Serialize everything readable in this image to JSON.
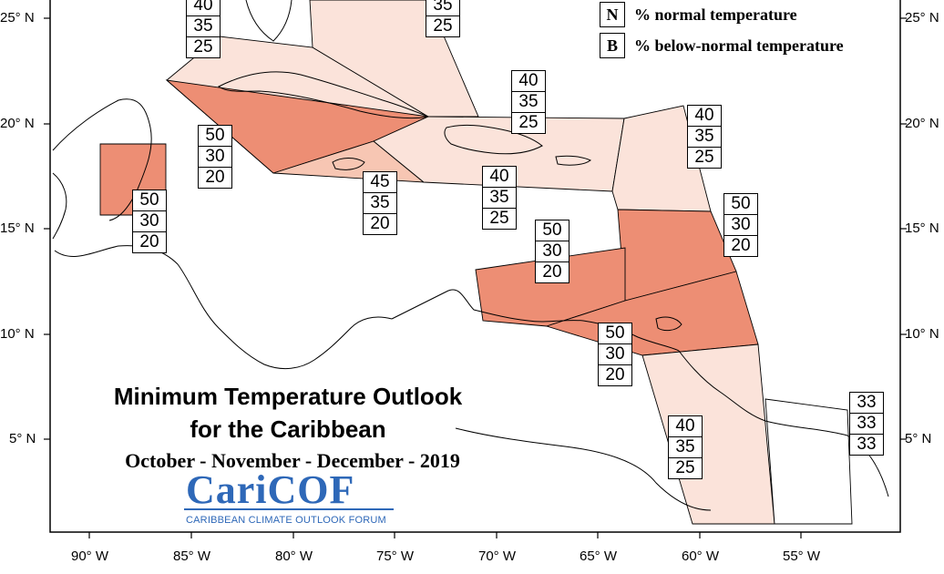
{
  "title_line1": "Minimum Temperature Outlook",
  "title_line2": "for the Caribbean",
  "subtitle": "October - November - December - 2019",
  "logo": {
    "name": "CariCOF",
    "tagline": "CARIBBEAN CLIMATE OUTLOOK FORUM"
  },
  "legend": [
    {
      "key": "N",
      "label": "% normal temperature"
    },
    {
      "key": "B",
      "label": "% below-normal temperature"
    }
  ],
  "lat_labels": [
    "25° N",
    "20° N",
    "15° N",
    "10° N",
    "5° N"
  ],
  "lon_labels": [
    "90° W",
    "85° W",
    "80° W",
    "75° W",
    "70° W",
    "65° W",
    "60° W",
    "55° W"
  ],
  "colors": {
    "above_50": "#ed8e74",
    "above_45": "#f7c6b3",
    "above_40": "#fbe3da",
    "none": "#ffffff"
  },
  "probability_boxes": [
    {
      "region": "bahamas-west",
      "above": "40",
      "normal": "35",
      "below": "25"
    },
    {
      "region": "bahamas-east",
      "above": "",
      "normal": "35",
      "below": "25"
    },
    {
      "region": "puerto-rico-north",
      "above": "40",
      "normal": "35",
      "below": "25"
    },
    {
      "region": "leeward-north",
      "above": "40",
      "normal": "35",
      "below": "25"
    },
    {
      "region": "cayman-cuba-south",
      "above": "50",
      "normal": "30",
      "below": "20"
    },
    {
      "region": "belize",
      "above": "50",
      "normal": "30",
      "below": "20"
    },
    {
      "region": "jamaica",
      "above": "45",
      "normal": "35",
      "below": "20"
    },
    {
      "region": "hispaniola",
      "above": "40",
      "normal": "35",
      "below": "25"
    },
    {
      "region": "windward",
      "above": "50",
      "normal": "30",
      "below": "20"
    },
    {
      "region": "abc-islands",
      "above": "50",
      "normal": "30",
      "below": "20"
    },
    {
      "region": "trinidad",
      "above": "50",
      "normal": "30",
      "below": "20"
    },
    {
      "region": "guyana",
      "above": "40",
      "normal": "35",
      "below": "25"
    },
    {
      "region": "french-guiana",
      "above": "33",
      "normal": "33",
      "below": "33"
    }
  ]
}
